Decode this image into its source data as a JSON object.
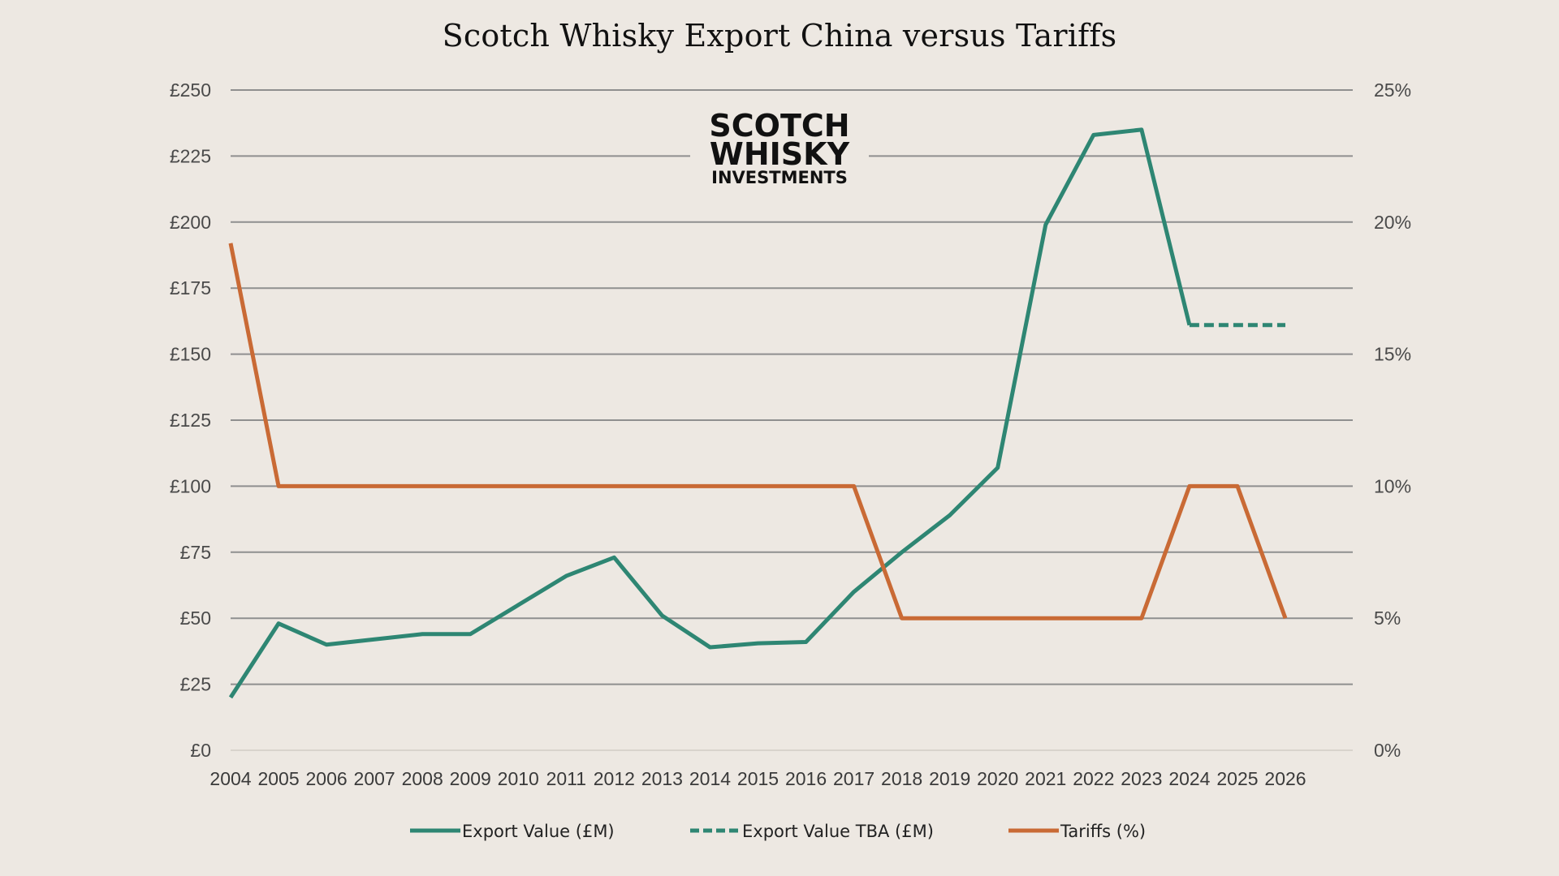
{
  "title": "Scotch Whisky Export China versus Tariffs",
  "logo": {
    "line1": "SCOTCH",
    "line2": "WHISKY",
    "line3": "INVESTMENTS"
  },
  "chart_data": {
    "type": "line",
    "title": "Scotch Whisky Export China versus Tariffs",
    "x": [
      2004,
      2005,
      2006,
      2007,
      2008,
      2009,
      2010,
      2011,
      2012,
      2013,
      2014,
      2015,
      2016,
      2017,
      2018,
      2019,
      2020,
      2021,
      2022,
      2023,
      2024,
      2025,
      2026
    ],
    "x_tick_labels": [
      "2004",
      "2005",
      "2006",
      "2007",
      "2008",
      "2009",
      "2010",
      "2011",
      "2012",
      "2013",
      "2014",
      "2015",
      "2016",
      "2017",
      "2018",
      "2019",
      "2020",
      "2021",
      "2022",
      "2023",
      "2024",
      "2025",
      "2026"
    ],
    "y_left": {
      "ylim": [
        0,
        250
      ],
      "ticks": [
        0,
        25,
        50,
        75,
        100,
        125,
        150,
        175,
        200,
        225,
        250
      ],
      "tick_labels": [
        "£0",
        "£25",
        "£50",
        "£75",
        "£100",
        "£125",
        "£150",
        "£175",
        "£200",
        "£225",
        "£250"
      ]
    },
    "y_right": {
      "ylim": [
        0,
        25
      ],
      "ticks": [
        0,
        5,
        10,
        15,
        20,
        25
      ],
      "tick_labels": [
        "0%",
        "5%",
        "10%",
        "15%",
        "20%",
        "25%"
      ]
    },
    "grid": true,
    "legend_position": "bottom",
    "series": [
      {
        "name": "Export Value (£M)",
        "axis": "left",
        "style": "solid",
        "color": "#2e8673",
        "points": [
          [
            2004,
            20
          ],
          [
            2005,
            48
          ],
          [
            2006,
            40
          ],
          [
            2007,
            42
          ],
          [
            2008,
            44
          ],
          [
            2009,
            44
          ],
          [
            2010,
            55
          ],
          [
            2011,
            66
          ],
          [
            2012,
            73
          ],
          [
            2013,
            51
          ],
          [
            2014,
            39
          ],
          [
            2015,
            40.5
          ],
          [
            2016,
            41
          ],
          [
            2017,
            60
          ],
          [
            2018,
            75
          ],
          [
            2019,
            89
          ],
          [
            2020,
            107
          ],
          [
            2021,
            199
          ],
          [
            2022,
            233
          ],
          [
            2023,
            235
          ],
          [
            2024,
            161
          ]
        ]
      },
      {
        "name": "Export Value TBA (£M)",
        "axis": "left",
        "style": "dashed",
        "color": "#2e8673",
        "points": [
          [
            2024,
            161
          ],
          [
            2025,
            161
          ],
          [
            2026,
            161
          ]
        ]
      },
      {
        "name": "Tariffs (%)",
        "axis": "right",
        "style": "solid",
        "color": "#c96a35",
        "points": [
          [
            2004,
            19.2
          ],
          [
            2005,
            10
          ],
          [
            2006,
            10
          ],
          [
            2007,
            10
          ],
          [
            2008,
            10
          ],
          [
            2009,
            10
          ],
          [
            2010,
            10
          ],
          [
            2011,
            10
          ],
          [
            2012,
            10
          ],
          [
            2013,
            10
          ],
          [
            2014,
            10
          ],
          [
            2015,
            10
          ],
          [
            2016,
            10
          ],
          [
            2017,
            10
          ],
          [
            2018,
            5
          ],
          [
            2019,
            5
          ],
          [
            2020,
            5
          ],
          [
            2021,
            5
          ],
          [
            2022,
            5
          ],
          [
            2023,
            5
          ],
          [
            2024,
            10
          ],
          [
            2025,
            10
          ],
          [
            2026,
            5
          ]
        ]
      }
    ]
  }
}
